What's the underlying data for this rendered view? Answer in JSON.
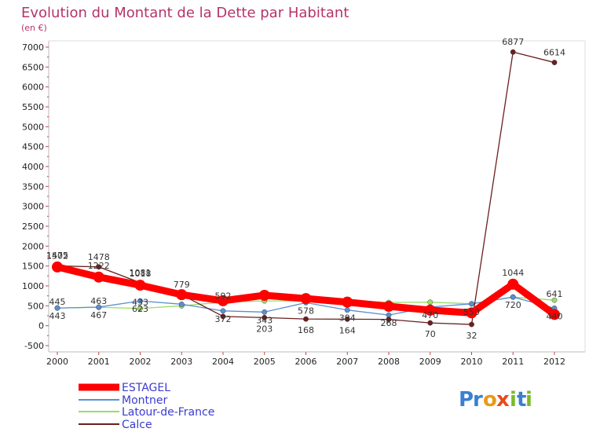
{
  "chart_data": {
    "type": "line",
    "title": "Evolution du Montant de la Dette par Habitant",
    "subtitle": "(en €)",
    "x": [
      "2000",
      "2001",
      "2002",
      "2003",
      "2004",
      "2005",
      "2006",
      "2007",
      "2008",
      "2009",
      "2010",
      "2011",
      "2012"
    ],
    "yticks": [
      "-500",
      "0",
      "500",
      "1000",
      "1500",
      "2000",
      "2500",
      "3000",
      "3500",
      "4000",
      "4500",
      "5000",
      "5500",
      "6000",
      "6500",
      "7000"
    ],
    "ylim": [
      -500,
      7000
    ],
    "grid": false,
    "legend": "bottom-left",
    "series": [
      {
        "name": "ESTAGEL",
        "color": "#ff0000",
        "values": [
          1475,
          1222,
          1018,
          780,
          627,
          764,
          681,
          592,
          487,
          390,
          322,
          1044,
          283
        ],
        "labels": [
          "1475",
          "1222",
          "1018",
          "",
          "",
          "",
          "",
          "",
          "",
          "",
          "",
          "1044",
          ""
        ]
      },
      {
        "name": "Montner",
        "color": "#5a8fd0",
        "values": [
          443,
          467,
          623,
          540,
          372,
          343,
          578,
          394,
          268,
          470,
          550,
          720,
          440
        ],
        "labels": [
          "443",
          "467",
          "623",
          "",
          "372",
          "343",
          "578",
          "394",
          "268",
          "470",
          "550",
          "720",
          "440"
        ]
      },
      {
        "name": "Latour-de-France",
        "color": "#99dd66",
        "values": [
          445,
          463,
          433,
          500,
          592,
          623,
          622,
          640,
          584,
          592,
          550,
          720,
          641
        ],
        "labels": [
          "445",
          "463",
          "433",
          "",
          "592",
          "",
          "",
          "",
          "",
          "",
          "",
          "",
          "641"
        ]
      },
      {
        "name": "Calce",
        "color": "#6b1f1f",
        "values": [
          1502,
          1478,
          1081,
          779,
          233,
          203,
          168,
          164,
          159,
          70,
          32,
          6877,
          6614
        ],
        "labels": [
          "1502",
          "1478",
          "1081",
          "779",
          "",
          "203",
          "168",
          "164",
          "",
          "70",
          "32",
          "6877",
          "6614"
        ]
      }
    ]
  },
  "logo": {
    "text": "Proxiti"
  }
}
